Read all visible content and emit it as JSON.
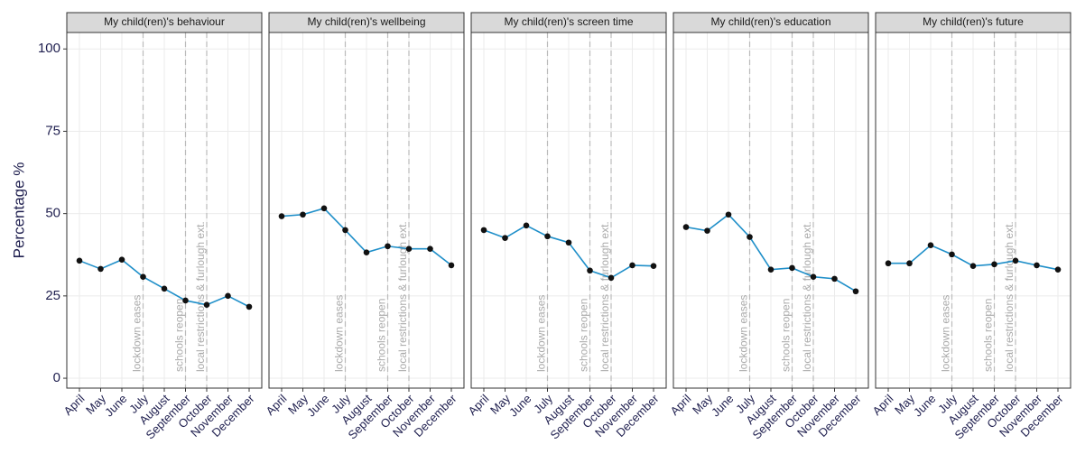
{
  "chart_data": [
    {
      "type": "line",
      "title": "My child(ren)'s behaviour",
      "ylabel": "Percentage %",
      "categories": [
        "April",
        "May",
        "June",
        "July",
        "August",
        "September",
        "October",
        "November",
        "December"
      ],
      "values": [
        35.7,
        33.2,
        36,
        30.8,
        27.2,
        23.6,
        22.3,
        25,
        21.7
      ],
      "color": "#1f8fc9",
      "marker_color": "#111111",
      "ylim": [
        -3,
        105
      ],
      "yticks": [
        0,
        25,
        50,
        75,
        100
      ],
      "grid": true,
      "annotations": [
        {
          "category": "July",
          "label": "lockdown eases"
        },
        {
          "category": "September",
          "label": "schools reopen"
        },
        {
          "category": "October",
          "label": "local restrictions & furlough ext."
        }
      ]
    },
    {
      "type": "line",
      "title": "My child(ren)'s wellbeing",
      "categories": [
        "April",
        "May",
        "June",
        "July",
        "August",
        "September",
        "October",
        "November",
        "December"
      ],
      "values": [
        49.2,
        49.7,
        51.6,
        45,
        38.2,
        40.1,
        39.3,
        39.3,
        34.3
      ],
      "color": "#1f8fc9",
      "marker_color": "#111111",
      "ylim": [
        -3,
        105
      ],
      "yticks": [
        0,
        25,
        50,
        75,
        100
      ],
      "grid": true,
      "annotations": [
        {
          "category": "July",
          "label": "lockdown eases"
        },
        {
          "category": "September",
          "label": "schools reopen"
        },
        {
          "category": "October",
          "label": "local restrictions & furlough ext."
        }
      ]
    },
    {
      "type": "line",
      "title": "My child(ren)'s screen time",
      "categories": [
        "April",
        "May",
        "June",
        "July",
        "August",
        "September",
        "October",
        "November",
        "December"
      ],
      "values": [
        45,
        42.6,
        46.4,
        43.1,
        41.2,
        32.7,
        30.5,
        34.3,
        34.1
      ],
      "color": "#1f8fc9",
      "marker_color": "#111111",
      "ylim": [
        -3,
        105
      ],
      "yticks": [
        0,
        25,
        50,
        75,
        100
      ],
      "grid": true,
      "annotations": [
        {
          "category": "July",
          "label": "lockdown eases"
        },
        {
          "category": "September",
          "label": "schools reopen"
        },
        {
          "category": "October",
          "label": "local restrictions & furlough ext."
        }
      ]
    },
    {
      "type": "line",
      "title": "My child(ren)'s education",
      "categories": [
        "April",
        "May",
        "June",
        "July",
        "August",
        "September",
        "October",
        "November",
        "December"
      ],
      "values": [
        45.9,
        44.8,
        49.7,
        42.9,
        33,
        33.5,
        30.8,
        30.2,
        26.4
      ],
      "color": "#1f8fc9",
      "marker_color": "#111111",
      "ylim": [
        -3,
        105
      ],
      "yticks": [
        0,
        25,
        50,
        75,
        100
      ],
      "grid": true,
      "annotations": [
        {
          "category": "July",
          "label": "lockdown eases"
        },
        {
          "category": "September",
          "label": "schools reopen"
        },
        {
          "category": "October",
          "label": "local restrictions & furlough ext."
        }
      ]
    },
    {
      "type": "line",
      "title": "My child(ren)'s future",
      "categories": [
        "April",
        "May",
        "June",
        "July",
        "August",
        "September",
        "October",
        "November",
        "December"
      ],
      "values": [
        34.9,
        34.9,
        40.4,
        37.6,
        34.1,
        34.6,
        35.7,
        34.3,
        33
      ],
      "color": "#1f8fc9",
      "marker_color": "#111111",
      "ylim": [
        -3,
        105
      ],
      "yticks": [
        0,
        25,
        50,
        75,
        100
      ],
      "grid": true,
      "annotations": [
        {
          "category": "July",
          "label": "lockdown eases"
        },
        {
          "category": "September",
          "label": "schools reopen"
        },
        {
          "category": "October",
          "label": "local restrictions & furlough ext."
        }
      ]
    }
  ]
}
